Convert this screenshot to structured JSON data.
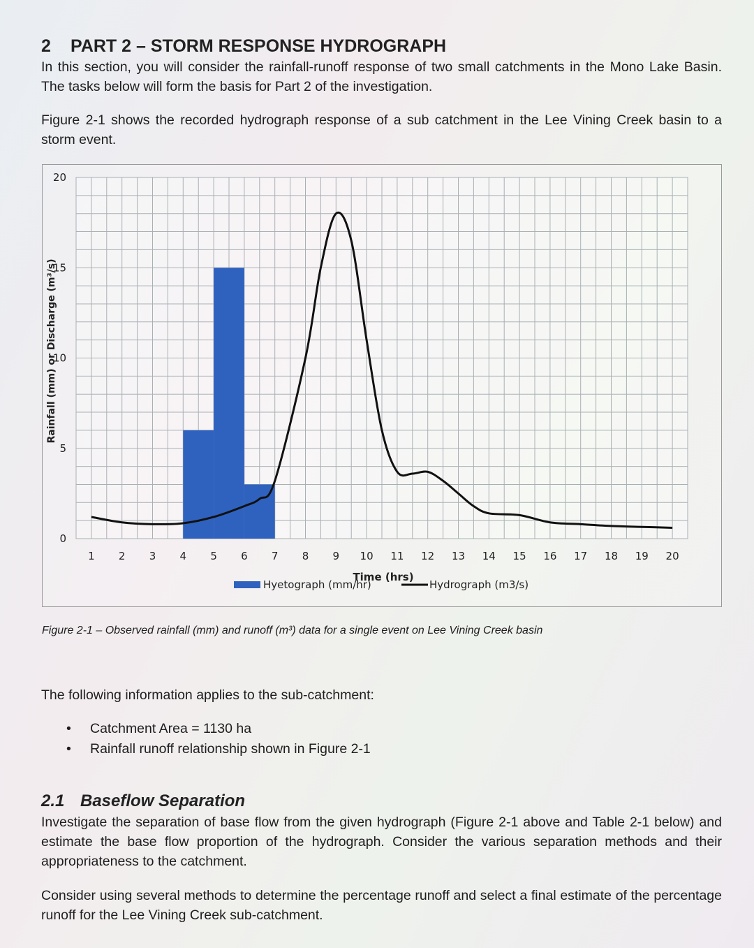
{
  "section": {
    "number": "2",
    "title": "PART 2 – STORM RESPONSE HYDROGRAPH",
    "intro": "In this section, you will consider the rainfall-runoff response of two small catchments in the Mono Lake Basin. The tasks below will form the basis for Part 2 of the investigation.",
    "figure_intro": "Figure 2-1 shows the recorded hydrograph response of a sub catchment in the Lee Vining Creek basin to a storm event."
  },
  "figure": {
    "caption": "Figure 2-1 – Observed rainfall (mm) and runoff (m³) data for a single event on Lee Vining Creek basin"
  },
  "chart_data": {
    "type": "bar",
    "title": "",
    "xlabel": "Time (hrs)",
    "ylabel": "Rainfall (mm) or Discharge (m³/s)",
    "xlim": [
      0.5,
      20.5
    ],
    "ylim": [
      0,
      20
    ],
    "x_ticks": [
      "1",
      "2",
      "3",
      "4",
      "5",
      "6",
      "7",
      "8",
      "9",
      "10",
      "11",
      "12",
      "13",
      "14",
      "15",
      "16",
      "17",
      "18",
      "19",
      "20"
    ],
    "y_ticks": [
      "0",
      "5",
      "10",
      "15",
      "20"
    ],
    "grid": true,
    "legend_position": "bottom",
    "series": [
      {
        "name": "Hyetograph (mm/hr)",
        "kind": "bar",
        "color": "#2f62bf",
        "bars": [
          {
            "from": 4,
            "to": 5,
            "value": 6
          },
          {
            "from": 5,
            "to": 6,
            "value": 15
          },
          {
            "from": 6,
            "to": 7,
            "value": 3
          }
        ]
      },
      {
        "name": "Hydrograph (m3/s)",
        "kind": "line",
        "color": "#111111",
        "points": [
          [
            1,
            1.2
          ],
          [
            2,
            0.9
          ],
          [
            3,
            0.8
          ],
          [
            4,
            0.85
          ],
          [
            5,
            1.2
          ],
          [
            6,
            1.8
          ],
          [
            6.5,
            2.2
          ],
          [
            7,
            3.2
          ],
          [
            8,
            10
          ],
          [
            8.5,
            15
          ],
          [
            9,
            18
          ],
          [
            9.5,
            16.5
          ],
          [
            10,
            11
          ],
          [
            10.5,
            6
          ],
          [
            11,
            3.7
          ],
          [
            11.5,
            3.6
          ],
          [
            12,
            3.7
          ],
          [
            12.5,
            3.2
          ],
          [
            13,
            2.5
          ],
          [
            13.5,
            1.8
          ],
          [
            14,
            1.4
          ],
          [
            15,
            1.3
          ],
          [
            16,
            0.9
          ],
          [
            17,
            0.8
          ],
          [
            18,
            0.7
          ],
          [
            19,
            0.65
          ],
          [
            20,
            0.6
          ]
        ]
      }
    ]
  },
  "catchment_info": {
    "intro": "The following information applies to the sub-catchment:",
    "bullet_symbol": "•",
    "items": [
      "Catchment Area = 1130 ha",
      "Rainfall runoff relationship shown in Figure 2-1"
    ]
  },
  "subsection": {
    "number": "2.1",
    "title": "Baseflow Separation",
    "paragraph1": "Investigate the separation of base flow from the given hydrograph (Figure 2-1 above and Table 2-1 below) and estimate the base flow proportion of the hydrograph. Consider the various separation methods and their appropriateness to the catchment.",
    "paragraph2": "Consider using several methods to determine the percentage runoff and select a final estimate of the percentage runoff for the Lee Vining Creek sub-catchment."
  }
}
